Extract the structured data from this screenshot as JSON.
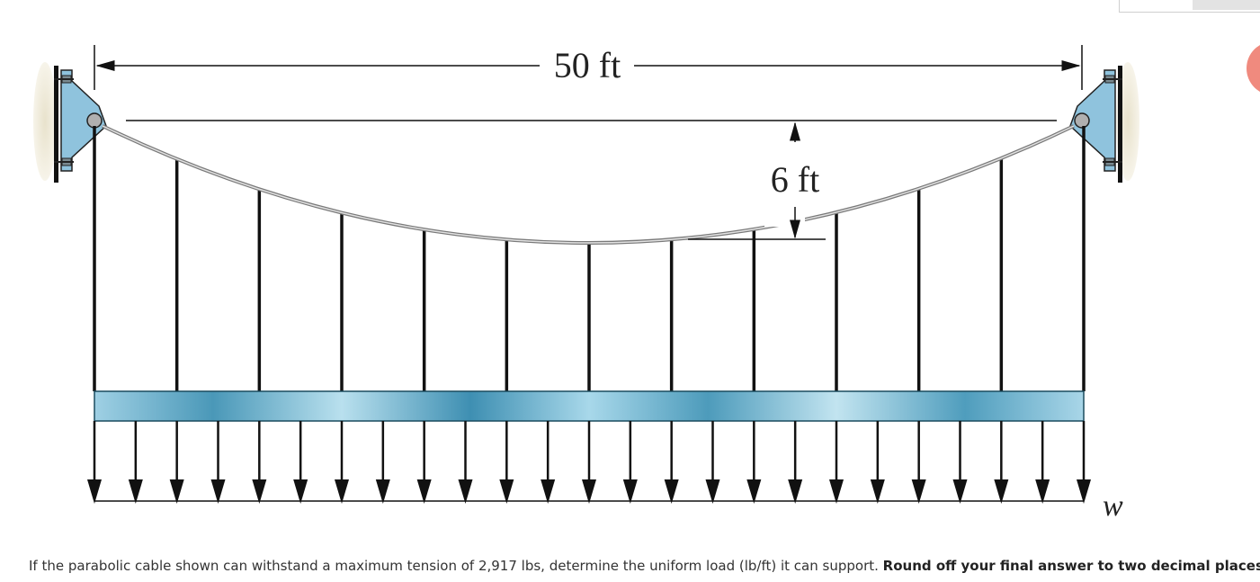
{
  "figure": {
    "span_label": "50 ft",
    "sag_label": "6 ft",
    "load_label": "w",
    "colors": {
      "support_plate": "#8fc3dd",
      "beam": "#5aa6c4",
      "line": "#111111",
      "cable": "#9a9a9a"
    }
  },
  "problem": {
    "text": "If the parabolic cable shown can withstand a maximum tension of 2,917 lbs, determine the uniform load (lb/ft) it can support.",
    "emphasis": "Round off your final answer to two decimal places."
  },
  "ui": {
    "accent": "#f08a7e"
  }
}
